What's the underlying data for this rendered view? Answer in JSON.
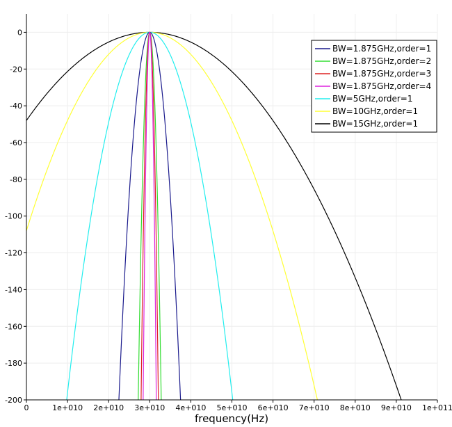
{
  "chart_data": {
    "type": "line",
    "title": "",
    "xlabel": "frequency(Hz)",
    "ylabel": "",
    "xlim": [
      0,
      100000000000
    ],
    "ylim": [
      -200,
      10
    ],
    "x_ticks": [
      0,
      10000000000,
      20000000000,
      30000000000,
      40000000000,
      50000000000,
      60000000000,
      70000000000,
      80000000000,
      90000000000,
      100000000000
    ],
    "x_tick_labels": [
      "0",
      "1e+010",
      "2e+010",
      "3e+010",
      "4e+010",
      "5e+010",
      "6e+010",
      "7e+010",
      "8e+010",
      "9e+010",
      "1e+011"
    ],
    "y_ticks": [
      0,
      -20,
      -40,
      -60,
      -80,
      -100,
      -120,
      -140,
      -160,
      -180,
      -200
    ],
    "y_tick_labels": [
      "0",
      "-20",
      "-40",
      "-60",
      "-80",
      "-100",
      "-120",
      "-140",
      "-160",
      "-180",
      "-200"
    ],
    "grid": true,
    "legend_position": "top-right",
    "center_frequency_hz": 30000000000,
    "series": [
      {
        "name": "BW=1.875GHz,order=1",
        "color": "#1a1a8c",
        "bandwidth_hz": 1875000000,
        "order": 1,
        "curve": "parabolic",
        "points": [
          [
            22500000000,
            -200
          ],
          [
            30000000000,
            0
          ],
          [
            37500000000,
            -200
          ]
        ]
      },
      {
        "name": "BW=1.875GHz,order=2",
        "color": "#33dd33",
        "bandwidth_hz": 1875000000,
        "order": 2,
        "curve": "parabolic",
        "points": [
          [
            27200000000,
            -200
          ],
          [
            30000000000,
            0
          ],
          [
            32800000000,
            -200
          ]
        ]
      },
      {
        "name": "BW=1.875GHz,order=3",
        "color": "#dd2222",
        "bandwidth_hz": 1875000000,
        "order": 3,
        "curve": "parabolic",
        "points": [
          [
            27900000000,
            -200
          ],
          [
            30000000000,
            0
          ],
          [
            32100000000,
            -200
          ]
        ]
      },
      {
        "name": "BW=1.875GHz,order=4",
        "color": "#dd22dd",
        "bandwidth_hz": 1875000000,
        "order": 4,
        "curve": "parabolic",
        "points": [
          [
            28400000000,
            -200
          ],
          [
            30000000000,
            0
          ],
          [
            31600000000,
            -200
          ]
        ]
      },
      {
        "name": "BW=5GHz,order=1",
        "color": "#22eeee",
        "bandwidth_hz": 5000000000,
        "order": 1,
        "curve": "parabolic",
        "points": [
          [
            9800000000,
            -200
          ],
          [
            30000000000,
            0
          ],
          [
            50200000000,
            -200
          ]
        ]
      },
      {
        "name": "BW=10GHz,order=1",
        "color": "#ffff33",
        "bandwidth_hz": 10000000000,
        "order": 1,
        "curve": "parabolic",
        "points": [
          [
            0,
            -108
          ],
          [
            30000000000,
            0
          ],
          [
            70800000000,
            -200
          ]
        ]
      },
      {
        "name": "BW=15GHz,order=1",
        "color": "#000000",
        "bandwidth_hz": 15000000000,
        "order": 1,
        "curve": "parabolic",
        "points": [
          [
            0,
            -48
          ],
          [
            30000000000,
            0
          ],
          [
            91200000000,
            -200
          ]
        ]
      }
    ]
  }
}
